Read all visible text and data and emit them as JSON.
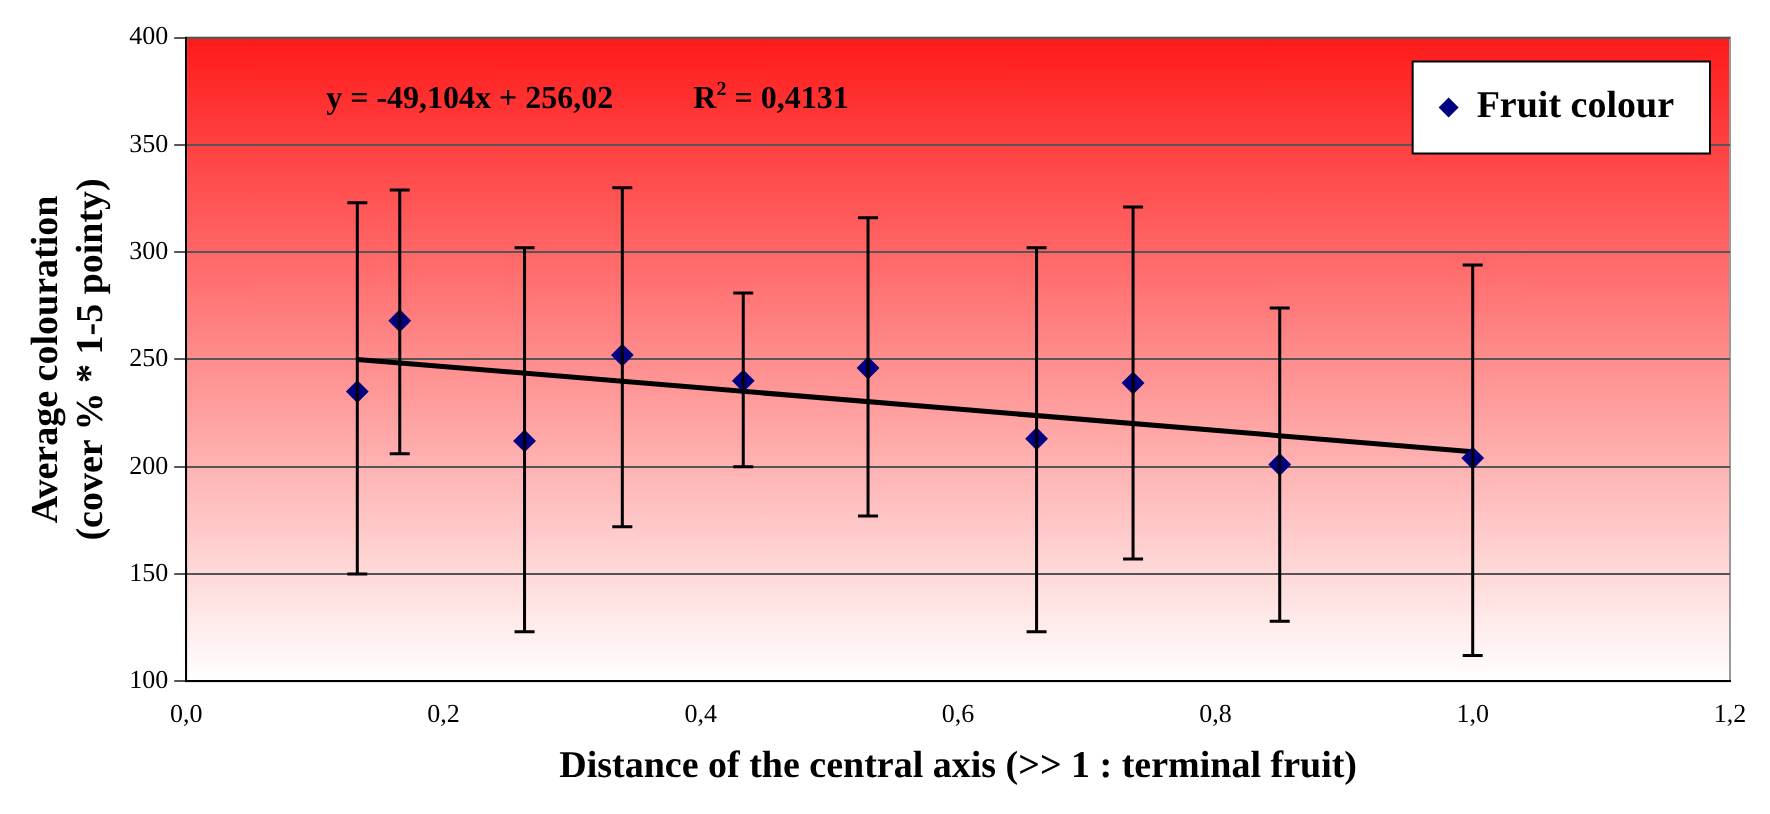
{
  "chart_data": {
    "type": "scatter",
    "xlabel": "Distance of the central axis (>> 1 : terminal fruit)",
    "ylabel": "Average colouration\n(cover % * 1-5 pointy)",
    "annotations": [
      "y = -49,104x + 256,02",
      "R$^{2}$ = 0,4131"
    ],
    "series": [
      {
        "name": "Fruit colour",
        "color": "#000080",
        "type": "scatter",
        "marker": "diamond",
        "x": [
          0.133,
          0.166,
          0.263,
          0.339,
          0.433,
          0.53,
          0.661,
          0.736,
          0.85,
          1.0
        ],
        "values": [
          235,
          268,
          212,
          252,
          240,
          246,
          213,
          239,
          201,
          204
        ],
        "errors": [
          [
            150,
            323
          ],
          [
            206,
            329
          ],
          [
            123,
            302
          ],
          [
            172,
            330
          ],
          [
            200,
            281
          ],
          [
            177,
            316
          ],
          [
            123,
            302
          ],
          [
            157,
            321
          ],
          [
            128,
            274
          ],
          [
            112,
            294
          ]
        ]
      },
      {
        "color": "#000000",
        "type": "line",
        "marker": "none",
        "line_style": "solid",
        "x": [
          0.133,
          1.0
        ],
        "values": [
          250,
          207
        ]
      }
    ],
    "xlim": [
      0,
      1.2
    ],
    "xticks": [
      {
        "value": 0,
        "label": "0,0"
      },
      {
        "value": 0.2,
        "label": "0,2"
      },
      {
        "value": 0.4,
        "label": "0,4"
      },
      {
        "value": 0.6,
        "label": "0,6"
      },
      {
        "value": 0.8,
        "label": "0,8"
      },
      {
        "value": 1.0,
        "label": "1,0"
      },
      {
        "value": 1.2,
        "label": "1,2"
      }
    ],
    "ylim": [
      100,
      400
    ],
    "yticks": [
      100,
      150,
      200,
      250,
      300,
      350,
      400
    ],
    "grid": "y",
    "legend": "top right"
  }
}
